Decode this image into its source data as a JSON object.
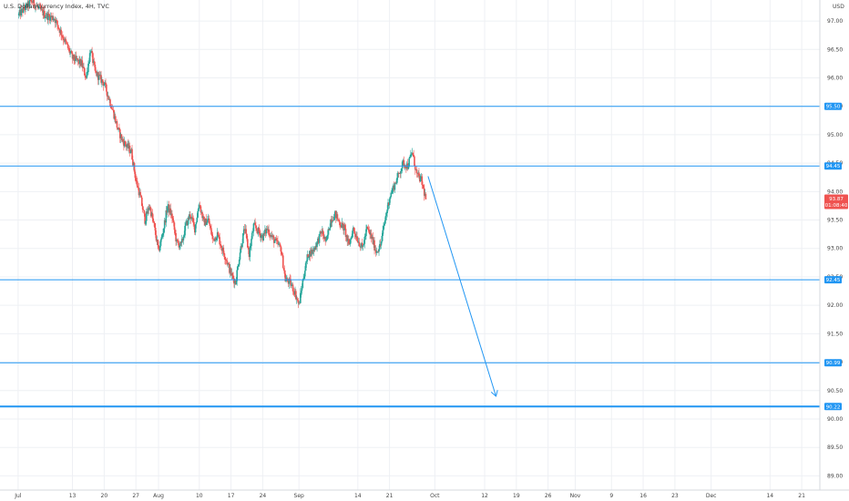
{
  "chart_data": {
    "type": "candlestick",
    "title": "U.S. Dollar Currency Index, 4H, TVC",
    "currency_label": "USD",
    "ylim": [
      88.75,
      97.37
    ],
    "y_ticks": [
      "97.00",
      "96.50",
      "96.00",
      "95.50",
      "95.00",
      "94.50",
      "94.00",
      "93.50",
      "93.00",
      "92.50",
      "92.00",
      "91.50",
      "91.00",
      "90.50",
      "90.00",
      "89.50",
      "89.00"
    ],
    "x_ticks": [
      {
        "label": "Jul",
        "day": 0
      },
      {
        "label": "13",
        "day": 12
      },
      {
        "label": "20",
        "day": 19
      },
      {
        "label": "27",
        "day": 26
      },
      {
        "label": "Aug",
        "day": 31
      },
      {
        "label": "10",
        "day": 40
      },
      {
        "label": "17",
        "day": 47
      },
      {
        "label": "24",
        "day": 54
      },
      {
        "label": "Sep",
        "day": 62
      },
      {
        "label": "14",
        "day": 75
      },
      {
        "label": "21",
        "day": 82
      },
      {
        "label": "Oct",
        "day": 92
      },
      {
        "label": "12",
        "day": 103
      },
      {
        "label": "19",
        "day": 110
      },
      {
        "label": "26",
        "day": 117
      },
      {
        "label": "Nov",
        "day": 123
      },
      {
        "label": "9",
        "day": 131
      },
      {
        "label": "16",
        "day": 138
      },
      {
        "label": "23",
        "day": 145
      },
      {
        "label": "Dec",
        "day": 153
      },
      {
        "label": "14",
        "day": 166
      },
      {
        "label": "21",
        "day": 173
      }
    ],
    "xlim_days": [
      -4,
      177
    ],
    "price_path": [
      [
        0,
        97.1
      ],
      [
        3,
        97.35
      ],
      [
        6,
        97.1
      ],
      [
        8,
        97.05
      ],
      [
        10,
        96.7
      ],
      [
        12,
        96.35
      ],
      [
        14,
        96.25
      ],
      [
        15,
        96.0
      ],
      [
        16,
        96.5
      ],
      [
        17,
        96.1
      ],
      [
        19,
        95.9
      ],
      [
        21,
        95.4
      ],
      [
        22,
        95.1
      ],
      [
        23,
        94.9
      ],
      [
        25,
        94.7
      ],
      [
        26,
        94.2
      ],
      [
        27,
        93.9
      ],
      [
        28,
        93.5
      ],
      [
        29,
        93.75
      ],
      [
        30,
        93.4
      ],
      [
        31,
        92.95
      ],
      [
        32,
        93.3
      ],
      [
        33,
        93.75
      ],
      [
        34,
        93.55
      ],
      [
        35,
        93.1
      ],
      [
        36,
        93.05
      ],
      [
        37,
        93.4
      ],
      [
        38,
        93.6
      ],
      [
        39,
        93.35
      ],
      [
        40,
        93.8
      ],
      [
        41,
        93.45
      ],
      [
        42,
        93.5
      ],
      [
        43,
        93.15
      ],
      [
        44,
        93.25
      ],
      [
        45,
        93.0
      ],
      [
        46,
        92.8
      ],
      [
        47,
        92.55
      ],
      [
        48,
        92.4
      ],
      [
        49,
        92.95
      ],
      [
        50,
        93.35
      ],
      [
        51,
        92.9
      ],
      [
        52,
        93.4
      ],
      [
        53,
        93.3
      ],
      [
        54,
        93.2
      ],
      [
        55,
        93.35
      ],
      [
        56,
        93.2
      ],
      [
        57,
        93.1
      ],
      [
        58,
        93.0
      ],
      [
        59,
        92.45
      ],
      [
        60,
        92.4
      ],
      [
        61,
        92.25
      ],
      [
        62,
        92.0
      ],
      [
        63,
        92.5
      ],
      [
        64,
        92.9
      ],
      [
        65,
        92.95
      ],
      [
        66,
        93.1
      ],
      [
        67,
        93.3
      ],
      [
        68,
        93.1
      ],
      [
        69,
        93.5
      ],
      [
        70,
        93.6
      ],
      [
        71,
        93.45
      ],
      [
        72,
        93.35
      ],
      [
        73,
        93.05
      ],
      [
        74,
        93.35
      ],
      [
        75,
        93.15
      ],
      [
        76,
        93.0
      ],
      [
        77,
        93.35
      ],
      [
        78,
        93.2
      ],
      [
        79,
        92.95
      ],
      [
        80,
        93.05
      ],
      [
        81,
        93.5
      ],
      [
        82,
        93.9
      ],
      [
        83,
        94.1
      ],
      [
        84,
        94.3
      ],
      [
        85,
        94.5
      ],
      [
        86,
        94.45
      ],
      [
        87,
        94.7
      ],
      [
        88,
        94.3
      ],
      [
        89,
        94.2
      ],
      [
        90,
        93.87
      ]
    ],
    "horizontal_levels": [
      {
        "price": 95.5,
        "label": "95.50",
        "thickness": 1
      },
      {
        "price": 94.45,
        "label": "94.45",
        "thickness": 1
      },
      {
        "price": 92.45,
        "label": "92.45",
        "thickness": 1
      },
      {
        "price": 90.99,
        "label": "90.99",
        "thickness": 1
      },
      {
        "price": 90.22,
        "label": "90.22",
        "thickness": 2
      }
    ],
    "last_price": {
      "label": "93.87",
      "countdown": "01:08:40"
    },
    "projection_arrow": {
      "from": {
        "day": 90.5,
        "price": 94.27
      },
      "to": {
        "day": 105.5,
        "price": 90.4
      }
    },
    "colors": {
      "up": "#26a69a",
      "down": "#ef5350",
      "level_line": "#2196f3",
      "badge": "#2196f3",
      "last_price_badge": "#ef5350",
      "grid": "#eef0f4",
      "axis_text": "#444444"
    }
  }
}
